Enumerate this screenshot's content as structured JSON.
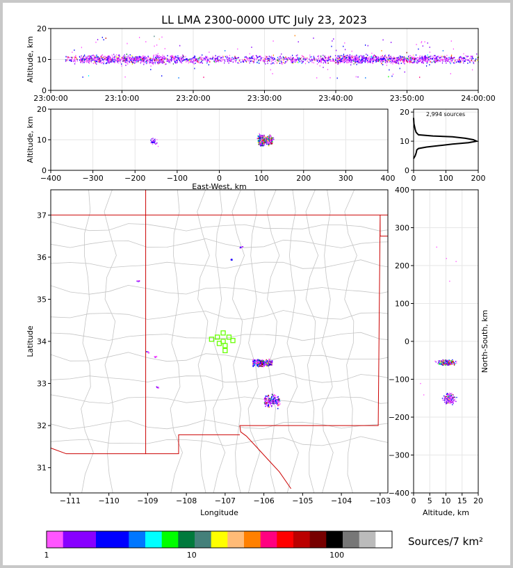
{
  "title": "LL LMA 2300-0000 UTC July 23, 2023",
  "colorbar": {
    "label": "Sources/7 km²",
    "tick_labels": [
      "1",
      "10",
      "100"
    ],
    "colors": [
      "#ff55ff",
      "#8800ff",
      "#8800ff",
      "#0000ff",
      "#0000ff",
      "#0077ff",
      "#00ffff",
      "#00ff00",
      "#007a3c",
      "#44807a",
      "#ffff00",
      "#ffbb77",
      "#ff8000",
      "#ff0080",
      "#ff0000",
      "#bb0000",
      "#770000",
      "#000000",
      "#777777",
      "#bbbbbb",
      "#ffffff"
    ]
  },
  "chart_data": [
    {
      "id": "time-altitude",
      "type": "scatter",
      "ylabel": "Altitude, km",
      "xlabel": "",
      "x_tick_labels": [
        "23:00:00",
        "23:10:00",
        "23:20:00",
        "23:30:00",
        "23:40:00",
        "23:50:00",
        "24:00:00"
      ],
      "y_ticks": [
        0,
        10,
        20
      ],
      "xlim": [
        "23:00:00",
        "24:00:00"
      ],
      "ylim": [
        0,
        20
      ],
      "main_altitude_band_km": [
        8,
        13
      ],
      "grid": true
    },
    {
      "id": "ew-altitude",
      "type": "scatter",
      "xlabel": "East-West, km",
      "ylabel": "Altitude, km",
      "x_ticks": [
        -400,
        -300,
        -200,
        -100,
        0,
        100,
        200,
        300,
        400
      ],
      "y_ticks": [
        0,
        10,
        20
      ],
      "xlim": [
        -400,
        400
      ],
      "ylim": [
        0,
        20
      ],
      "clusters": [
        {
          "x_range": [
            90,
            140
          ],
          "alt_range": [
            4,
            19
          ],
          "density": "high"
        },
        {
          "x_range": [
            -170,
            -140
          ],
          "alt_range": [
            6,
            13
          ],
          "density": "low"
        }
      ],
      "grid": true
    },
    {
      "id": "altitude-histogram",
      "type": "line",
      "annotation": "2,994 sources",
      "x_ticks": [
        0,
        100,
        200
      ],
      "y_ticks": [
        0,
        10,
        20
      ],
      "xlim": [
        0,
        200
      ],
      "ylim": [
        0,
        21
      ],
      "points": [
        [
          0,
          4
        ],
        [
          5,
          5
        ],
        [
          8,
          6
        ],
        [
          10,
          7
        ],
        [
          15,
          7.5
        ],
        [
          40,
          8
        ],
        [
          80,
          8.5
        ],
        [
          120,
          9
        ],
        [
          170,
          9.5
        ],
        [
          195,
          10
        ],
        [
          185,
          10.5
        ],
        [
          160,
          11
        ],
        [
          120,
          11.5
        ],
        [
          60,
          11.8
        ],
        [
          15,
          12.2
        ],
        [
          8,
          13
        ],
        [
          5,
          14
        ],
        [
          3,
          15
        ],
        [
          1,
          16
        ],
        [
          0,
          18
        ]
      ]
    },
    {
      "id": "plan-view",
      "type": "scatter",
      "xlabel": "Longitude",
      "ylabel": "Latitude",
      "x_ticks": [
        -111,
        -110,
        -109,
        -108,
        -107,
        -106,
        -105,
        -104,
        -103
      ],
      "y_ticks": [
        31,
        32,
        33,
        34,
        35,
        36,
        37
      ],
      "xlim": [
        -111.5,
        -102.8
      ],
      "ylim": [
        30.4,
        37.6
      ],
      "stations": [
        [
          -107.05,
          34.2
        ],
        [
          -107.2,
          34.1
        ],
        [
          -106.9,
          34.1
        ],
        [
          -107.35,
          34.05
        ],
        [
          -107.05,
          34.0
        ],
        [
          -106.8,
          34.02
        ],
        [
          -107.15,
          33.95
        ],
        [
          -107.0,
          33.9
        ],
        [
          -107.0,
          33.78
        ]
      ],
      "clusters": [
        {
          "lon_range": [
            -106.3,
            -105.8
          ],
          "lat_range": [
            33.4,
            33.6
          ],
          "density": "high"
        },
        {
          "lon_range": [
            -106.0,
            -105.6
          ],
          "lat_range": [
            32.4,
            32.8
          ],
          "density": "medium"
        },
        {
          "lon": -108.75,
          "lat": 32.92,
          "density": "low"
        },
        {
          "lon": -108.8,
          "lat": 33.65,
          "density": "low"
        },
        {
          "lon": -109.0,
          "lat": 33.75,
          "density": "low"
        },
        {
          "lon": -109.25,
          "lat": 35.45,
          "density": "low"
        },
        {
          "lon": -106.85,
          "lat": 35.95,
          "density": "low"
        },
        {
          "lon": -106.6,
          "lat": 36.25,
          "density": "low"
        }
      ],
      "grid": false
    },
    {
      "id": "altitude-ns",
      "type": "scatter",
      "xlabel": "Altitude, km",
      "ylabel": "North-South, km",
      "x_ticks": [
        0,
        5,
        10,
        15,
        20
      ],
      "y_ticks": [
        -400,
        -300,
        -200,
        -100,
        0,
        100,
        200,
        300,
        400
      ],
      "xlim": [
        0,
        20
      ],
      "ylim": [
        -400,
        400
      ],
      "clusters": [
        {
          "alt_range": [
            5,
            19
          ],
          "ns_range": [
            -65,
            -45
          ],
          "density": "high"
        },
        {
          "alt_range": [
            8,
            15
          ],
          "ns_range": [
            -170,
            -130
          ],
          "density": "medium"
        }
      ],
      "grid": true
    }
  ]
}
